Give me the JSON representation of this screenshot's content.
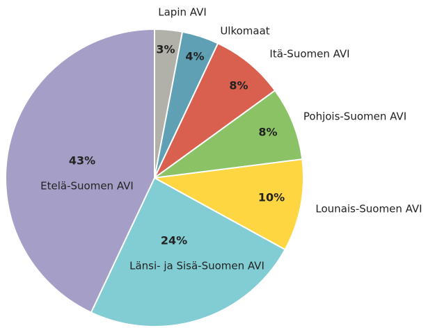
{
  "chart_data": {
    "type": "pie",
    "categories": [
      "Lapin AVI",
      "Ulkomaat",
      "Itä-Suomen AVI",
      "Pohjois-Suomen AVI",
      "Lounais-Suomen AVI",
      "Länsi- ja Sisä-Suomen AVI",
      "Etelä-Suomen AVI"
    ],
    "values": [
      3,
      4,
      8,
      8,
      10,
      24,
      43
    ],
    "value_labels": [
      "3%",
      "4%",
      "8%",
      "8%",
      "10%",
      "24%",
      "43%"
    ],
    "colors": [
      "#b1b1a9",
      "#5fa0b5",
      "#d9604f",
      "#8cc266",
      "#fdd642",
      "#82cdd4",
      "#a59fc8"
    ]
  }
}
